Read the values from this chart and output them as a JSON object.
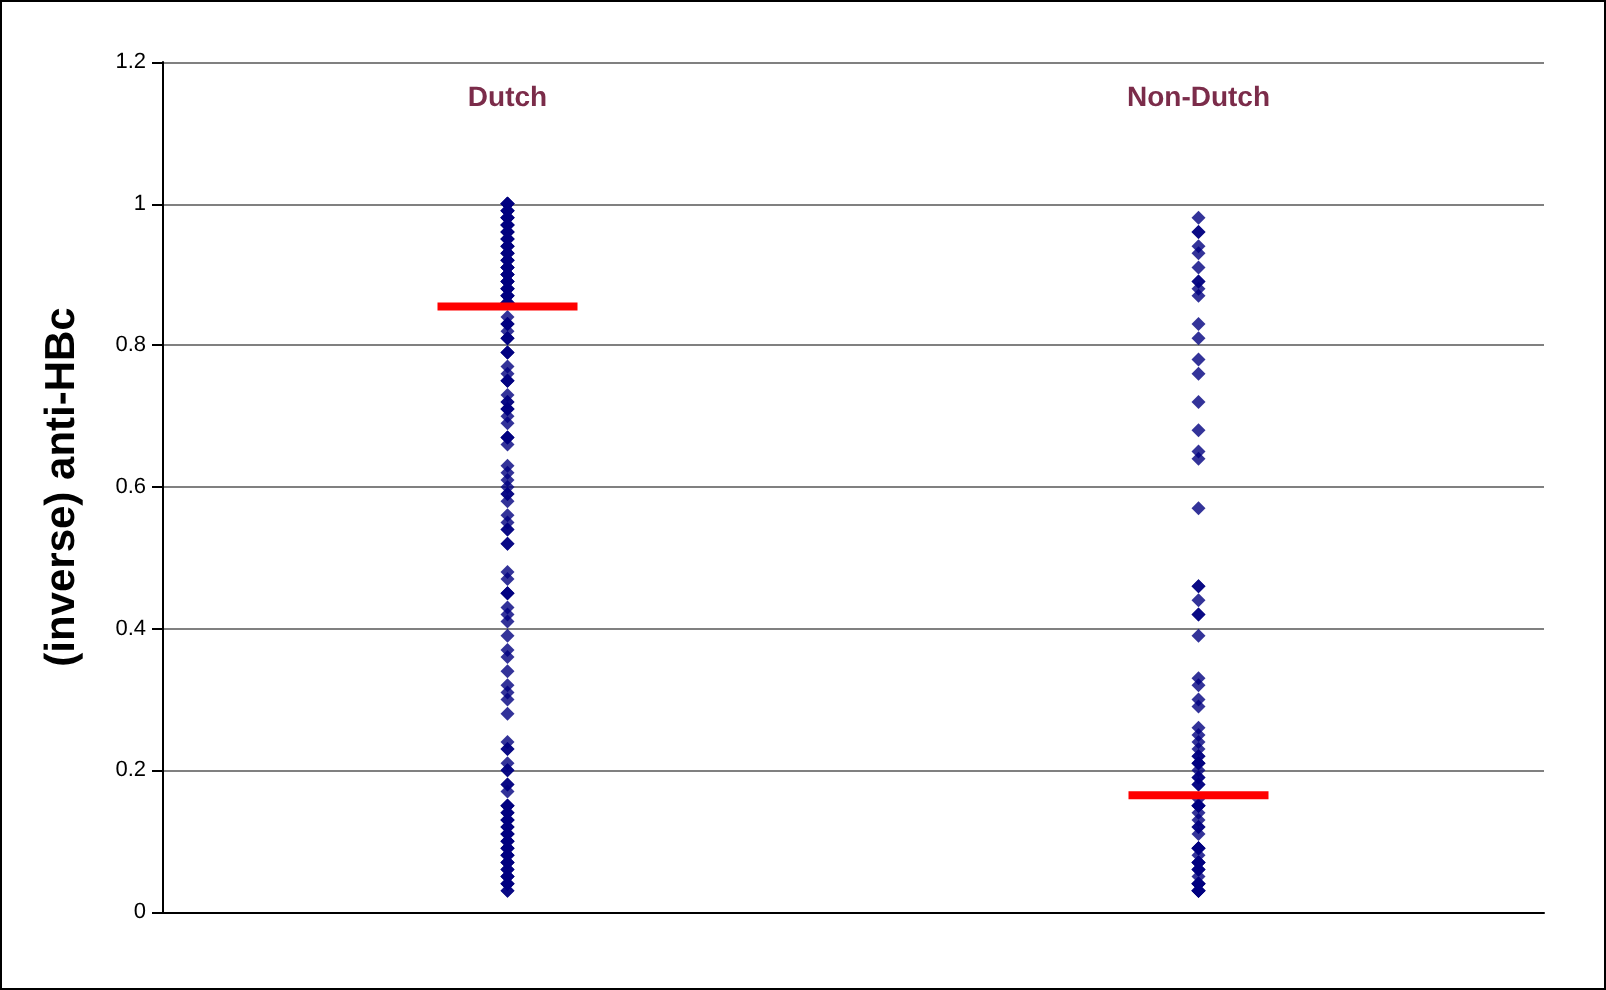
{
  "chart_data": {
    "type": "scatter",
    "ylabel": "(inverse) anti-HBc",
    "categories": [
      "Dutch",
      "Non-Dutch"
    ],
    "ylim": [
      0,
      1.2
    ],
    "yticks": [
      0,
      0.2,
      0.4,
      0.6,
      0.8,
      1,
      1.2
    ],
    "grid": "y",
    "marker": "diamond",
    "ref_lines": [
      {
        "axis": "y",
        "value": 0.855,
        "color": "#ff0000"
      },
      {
        "axis": "y",
        "value": 0.165,
        "color": "#ff0000"
      }
    ],
    "series": [
      {
        "color": "#000080",
        "x": [
          "Dutch",
          "Dutch",
          "Dutch",
          "Dutch",
          "Dutch",
          "Dutch",
          "Dutch",
          "Dutch",
          "Dutch",
          "Dutch",
          "Dutch",
          "Dutch",
          "Dutch",
          "Dutch",
          "Dutch",
          "Dutch",
          "Dutch",
          "Dutch",
          "Dutch",
          "Dutch",
          "Dutch",
          "Dutch",
          "Dutch",
          "Dutch",
          "Dutch",
          "Dutch",
          "Dutch",
          "Dutch",
          "Dutch",
          "Dutch",
          "Dutch",
          "Dutch",
          "Dutch",
          "Dutch",
          "Dutch",
          "Dutch",
          "Dutch",
          "Dutch",
          "Dutch",
          "Dutch",
          "Dutch",
          "Dutch",
          "Dutch",
          "Dutch",
          "Dutch",
          "Dutch",
          "Dutch",
          "Dutch",
          "Dutch",
          "Dutch",
          "Dutch",
          "Dutch",
          "Dutch",
          "Dutch",
          "Dutch",
          "Dutch",
          "Dutch",
          "Dutch",
          "Dutch",
          "Dutch",
          "Dutch",
          "Dutch",
          "Dutch",
          "Dutch",
          "Dutch",
          "Dutch",
          "Dutch",
          "Dutch",
          "Dutch",
          "Dutch",
          "Dutch",
          "Dutch",
          "Dutch",
          "Dutch",
          "Dutch",
          "Dutch",
          "Dutch",
          "Dutch",
          "Dutch",
          "Dutch",
          "Dutch",
          "Dutch",
          "Dutch",
          "Dutch",
          "Dutch",
          "Dutch",
          "Dutch",
          "Dutch",
          "Dutch",
          "Dutch",
          "Dutch",
          "Dutch",
          "Dutch",
          "Dutch",
          "Dutch",
          "Dutch",
          "Dutch",
          "Dutch",
          "Dutch",
          "Dutch",
          "Dutch",
          "Dutch",
          "Dutch",
          "Dutch",
          "Dutch",
          "Dutch",
          "Dutch",
          "Dutch",
          "Dutch",
          "Dutch",
          "Dutch",
          "Dutch",
          "Dutch",
          "Dutch",
          "Dutch",
          "Dutch",
          "Dutch",
          "Dutch",
          "Dutch",
          "Dutch",
          "Dutch",
          "Dutch",
          "Dutch",
          "Dutch",
          "Dutch",
          "Dutch",
          "Dutch",
          "Dutch",
          "Dutch",
          "Dutch",
          "Dutch",
          "Dutch",
          "Dutch",
          "Dutch",
          "Dutch",
          "Dutch",
          "Dutch",
          "Dutch",
          "Dutch",
          "Dutch",
          "Dutch",
          "Dutch",
          "Dutch",
          "Dutch",
          "Dutch",
          "Dutch",
          "Dutch",
          "Dutch",
          "Dutch",
          "Dutch",
          "Dutch",
          "Dutch",
          "Dutch",
          "Dutch",
          "Dutch",
          "Dutch",
          "Dutch",
          "Dutch",
          "Dutch",
          "Dutch",
          "Dutch",
          "Dutch",
          "Dutch",
          "Dutch",
          "Dutch",
          "Dutch",
          "Dutch",
          "Dutch",
          "Dutch",
          "Dutch",
          "Dutch",
          "Dutch",
          "Dutch",
          "Dutch",
          "Dutch",
          "Dutch",
          "Dutch",
          "Dutch",
          "Dutch",
          "Dutch",
          "Dutch",
          "Dutch",
          "Dutch",
          "Dutch",
          "Dutch",
          "Dutch",
          "Dutch",
          "Dutch",
          "Dutch",
          "Dutch",
          "Dutch",
          "Dutch"
        ],
        "values": [
          1.0,
          1.0,
          1.0,
          1.0,
          1.0,
          1.0,
          0.99,
          0.99,
          0.99,
          0.99,
          0.99,
          0.98,
          0.98,
          0.98,
          0.98,
          0.98,
          0.98,
          0.97,
          0.97,
          0.97,
          0.97,
          0.97,
          0.97,
          0.96,
          0.96,
          0.96,
          0.96,
          0.96,
          0.95,
          0.95,
          0.95,
          0.95,
          0.95,
          0.94,
          0.94,
          0.94,
          0.94,
          0.94,
          0.93,
          0.93,
          0.93,
          0.93,
          0.93,
          0.92,
          0.92,
          0.92,
          0.92,
          0.92,
          0.91,
          0.91,
          0.91,
          0.91,
          0.91,
          0.9,
          0.9,
          0.9,
          0.9,
          0.9,
          0.89,
          0.89,
          0.89,
          0.89,
          0.89,
          0.88,
          0.88,
          0.88,
          0.88,
          0.88,
          0.88,
          0.87,
          0.87,
          0.87,
          0.87,
          0.87,
          0.86,
          0.86,
          0.86,
          0.86,
          0.86,
          0.83,
          0.84,
          0.83,
          0.83,
          0.81,
          0.82,
          0.81,
          0.81,
          0.79,
          0.79,
          0.79,
          0.76,
          0.75,
          0.77,
          0.75,
          0.75,
          0.72,
          0.73,
          0.72,
          0.7,
          0.71,
          0.71,
          0.71,
          0.69,
          0.67,
          0.67,
          0.67,
          0.66,
          0.63,
          0.62,
          0.58,
          0.59,
          0.59,
          0.6,
          0.61,
          0.56,
          0.55,
          0.54,
          0.54,
          0.52,
          0.52,
          0.45,
          0.43,
          0.42,
          0.45,
          0.47,
          0.48,
          0.45,
          0.41,
          0.39,
          0.36,
          0.37,
          0.34,
          0.3,
          0.32,
          0.31,
          0.28,
          0.24,
          0.23,
          0.2,
          0.23,
          0.21,
          0.2,
          0.18,
          0.18,
          0.17,
          0.15,
          0.15,
          0.15,
          0.15,
          0.14,
          0.14,
          0.14,
          0.13,
          0.13,
          0.13,
          0.13,
          0.12,
          0.12,
          0.12,
          0.11,
          0.11,
          0.11,
          0.11,
          0.1,
          0.1,
          0.1,
          0.1,
          0.09,
          0.09,
          0.09,
          0.09,
          0.08,
          0.08,
          0.08,
          0.08,
          0.07,
          0.07,
          0.07,
          0.07,
          0.06,
          0.06,
          0.06,
          0.05,
          0.05,
          0.05,
          0.05,
          0.04,
          0.04,
          0.04,
          0.04,
          0.03,
          0.03
        ]
      },
      {
        "color": "#000080",
        "x": [
          "Non-Dutch",
          "Non-Dutch",
          "Non-Dutch",
          "Non-Dutch",
          "Non-Dutch",
          "Non-Dutch",
          "Non-Dutch",
          "Non-Dutch",
          "Non-Dutch",
          "Non-Dutch",
          "Non-Dutch",
          "Non-Dutch",
          "Non-Dutch",
          "Non-Dutch",
          "Non-Dutch",
          "Non-Dutch",
          "Non-Dutch",
          "Non-Dutch",
          "Non-Dutch",
          "Non-Dutch",
          "Non-Dutch",
          "Non-Dutch",
          "Non-Dutch",
          "Non-Dutch",
          "Non-Dutch",
          "Non-Dutch",
          "Non-Dutch",
          "Non-Dutch",
          "Non-Dutch",
          "Non-Dutch",
          "Non-Dutch",
          "Non-Dutch",
          "Non-Dutch",
          "Non-Dutch",
          "Non-Dutch",
          "Non-Dutch",
          "Non-Dutch",
          "Non-Dutch",
          "Non-Dutch",
          "Non-Dutch",
          "Non-Dutch",
          "Non-Dutch",
          "Non-Dutch",
          "Non-Dutch",
          "Non-Dutch",
          "Non-Dutch",
          "Non-Dutch",
          "Non-Dutch",
          "Non-Dutch",
          "Non-Dutch",
          "Non-Dutch",
          "Non-Dutch",
          "Non-Dutch",
          "Non-Dutch",
          "Non-Dutch",
          "Non-Dutch",
          "Non-Dutch",
          "Non-Dutch",
          "Non-Dutch",
          "Non-Dutch",
          "Non-Dutch",
          "Non-Dutch",
          "Non-Dutch",
          "Non-Dutch",
          "Non-Dutch",
          "Non-Dutch",
          "Non-Dutch",
          "Non-Dutch",
          "Non-Dutch",
          "Non-Dutch",
          "Non-Dutch",
          "Non-Dutch",
          "Non-Dutch",
          "Non-Dutch",
          "Non-Dutch",
          "Non-Dutch"
        ],
        "values": [
          0.98,
          0.96,
          0.96,
          0.94,
          0.93,
          0.91,
          0.89,
          0.88,
          0.89,
          0.87,
          0.83,
          0.81,
          0.78,
          0.76,
          0.72,
          0.68,
          0.65,
          0.64,
          0.57,
          0.46,
          0.46,
          0.44,
          0.42,
          0.42,
          0.39,
          0.33,
          0.32,
          0.3,
          0.29,
          0.26,
          0.23,
          0.25,
          0.24,
          0.21,
          0.21,
          0.22,
          0.21,
          0.22,
          0.2,
          0.19,
          0.19,
          0.18,
          0.18,
          0.16,
          0.15,
          0.15,
          0.14,
          0.15,
          0.15,
          0.13,
          0.12,
          0.12,
          0.11,
          0.09,
          0.09,
          0.09,
          0.09,
          0.07,
          0.07,
          0.08,
          0.07,
          0.07,
          0.06,
          0.06,
          0.06,
          0.05,
          0.04,
          0.04,
          0.04,
          0.04,
          0.03,
          0.03,
          0.04,
          0.03,
          0.03,
          0.03
        ]
      }
    ]
  }
}
